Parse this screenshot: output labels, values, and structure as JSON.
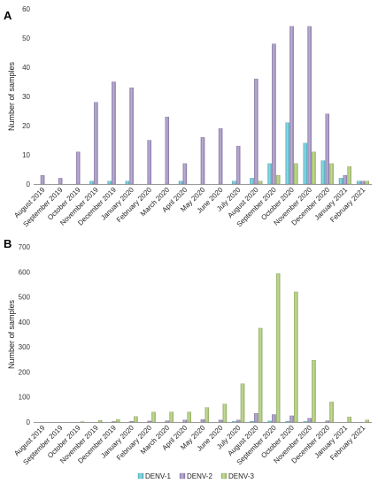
{
  "legend": {
    "placement": "bottom-center",
    "items": [
      {
        "label": "DENV-1",
        "color": "#5bc6d8"
      },
      {
        "label": "DENV-2",
        "color": "#9b8ac0"
      },
      {
        "label": "DENV-3",
        "color": "#a9c96a"
      }
    ]
  },
  "chart_data": [
    {
      "type": "bar",
      "panel_label": "A",
      "ylabel": "Number of samples",
      "xlabel": "",
      "ylim": [
        0,
        60
      ],
      "yticks": [
        0,
        10,
        20,
        30,
        40,
        50,
        60
      ],
      "grid": false,
      "categories": [
        "August 2019",
        "September 2019",
        "October 2019",
        "November 2019",
        "December 2019",
        "January 2020",
        "February 2020",
        "March 2020",
        "April 2020",
        "May 2020",
        "June 2020",
        "July 2020",
        "August 2020",
        "September 2020",
        "October 2020",
        "November 2020",
        "December 2020",
        "January 2021",
        "February 2021"
      ],
      "series": [
        {
          "name": "DENV-1",
          "values": [
            0,
            0,
            0,
            1,
            1,
            1,
            0,
            0,
            1,
            0,
            0,
            1,
            2,
            7,
            21,
            14,
            8,
            2,
            1
          ]
        },
        {
          "name": "DENV-2",
          "values": [
            3,
            2,
            11,
            28,
            35,
            33,
            15,
            23,
            7,
            16,
            19,
            13,
            36,
            48,
            54,
            54,
            24,
            3,
            1
          ]
        },
        {
          "name": "DENV-3",
          "values": [
            0,
            0,
            0,
            0,
            0,
            0,
            0,
            0,
            0,
            0,
            0,
            0,
            1,
            3,
            7,
            11,
            7,
            6,
            1
          ]
        }
      ]
    },
    {
      "type": "bar",
      "panel_label": "B",
      "ylabel": "Number of samples",
      "xlabel": "",
      "ylim": [
        0,
        700
      ],
      "yticks": [
        0,
        100,
        200,
        300,
        400,
        500,
        600,
        700
      ],
      "grid": false,
      "categories": [
        "August 2019",
        "September 2019",
        "October 2019",
        "November 2019",
        "December 2019",
        "January 2020",
        "February 2020",
        "March 2020",
        "April 2020",
        "May 2020",
        "June 2020",
        "July 2020",
        "August 2020",
        "September 2020",
        "October 2020",
        "November 2020",
        "December 2020",
        "January 2021",
        "February 2021"
      ],
      "series": [
        {
          "name": "DENV-1",
          "values": [
            0,
            0,
            0,
            0,
            0,
            0,
            0,
            0,
            0,
            0,
            0,
            2,
            3,
            4,
            3,
            2,
            0,
            0,
            0
          ]
        },
        {
          "name": "DENV-2",
          "values": [
            0,
            0,
            0,
            0,
            2,
            3,
            4,
            5,
            8,
            10,
            8,
            8,
            35,
            30,
            25,
            15,
            5,
            0,
            0
          ]
        },
        {
          "name": "DENV-3",
          "values": [
            0,
            0,
            1,
            7,
            10,
            22,
            40,
            40,
            40,
            58,
            72,
            153,
            375,
            593,
            520,
            247,
            80,
            20,
            8
          ]
        }
      ]
    }
  ]
}
